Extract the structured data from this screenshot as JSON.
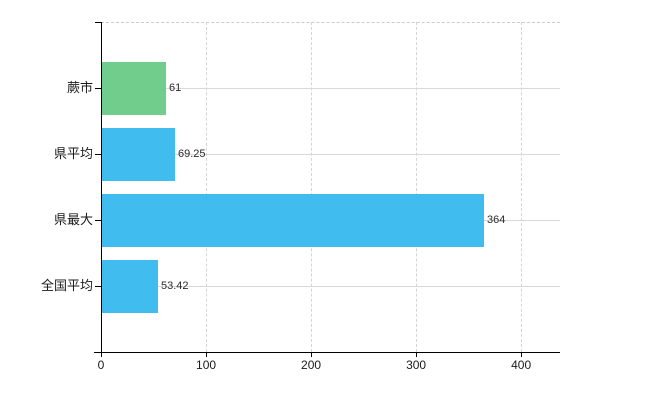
{
  "chart_data": {
    "type": "bar",
    "orientation": "horizontal",
    "title": "",
    "xlabel": "",
    "ylabel": "",
    "categories": [
      "蕨市",
      "県平均",
      "県最大",
      "全国平均"
    ],
    "values": [
      61,
      69.25,
      364,
      53.42
    ],
    "value_labels": [
      "61",
      "69.25",
      "364",
      "53.42"
    ],
    "bar_colors": [
      "#70cd8b",
      "#40bdee",
      "#40bdee",
      "#40bdee"
    ],
    "x_ticks": [
      0,
      100,
      200,
      300,
      400
    ],
    "x_tick_labels": [
      "0",
      "100",
      "200",
      "300",
      "400"
    ],
    "xlim": [
      0,
      437
    ],
    "grid": true,
    "legend_position": "none"
  },
  "colors": {
    "background": "#ffffff",
    "horizontal_grid": "#d9d9d9",
    "vertical_grid": "#d2d6ce",
    "top_border": "#c9cdc5",
    "axis": "#000000",
    "tick_text": "#1a1a1a",
    "value_text": "#2b2b2b"
  }
}
